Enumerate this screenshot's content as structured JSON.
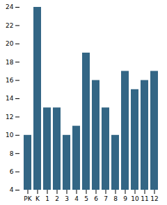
{
  "chart_data": {
    "type": "bar",
    "categories": [
      "PK",
      "K",
      "1",
      "2",
      "3",
      "4",
      "5",
      "6",
      "7",
      "8",
      "9",
      "10",
      "11",
      "12"
    ],
    "values": [
      10,
      24,
      13,
      13,
      10,
      11,
      19,
      16,
      13,
      10,
      17,
      15,
      16,
      17
    ],
    "color": "#336685",
    "ylim": [
      4,
      24
    ],
    "yticks": [
      4,
      6,
      8,
      10,
      12,
      14,
      16,
      18,
      20,
      22,
      24
    ],
    "grid": false
  }
}
